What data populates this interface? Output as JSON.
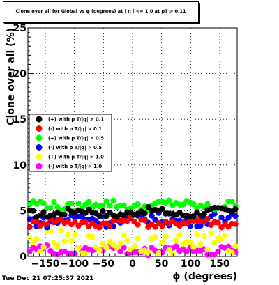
{
  "chart_data": {
    "type": "scatter",
    "title": "Clone  over all for Global vs φ (degrees) at | η | <= 1.0 at pT > 0.11",
    "xlabel": "ϕ (degrees)",
    "ylabel": "Clone  over all (%)",
    "xlim": [
      -180,
      180
    ],
    "ylim": [
      0,
      25
    ],
    "x_ticks": [
      -150,
      -100,
      -50,
      0,
      50,
      100,
      150
    ],
    "x_tick_labels": [
      "−150",
      "−100",
      "−50",
      "0",
      "50",
      "100",
      "150"
    ],
    "y_ticks": [
      0,
      5,
      10,
      15,
      20,
      25
    ],
    "y_tick_labels": [
      "0",
      "5",
      "10",
      "15",
      "20",
      "25"
    ],
    "grid": true,
    "legend_position": "left-middle",
    "series": [
      {
        "name": "(+) with p T/|q| > 0.1",
        "color": "#000000",
        "x": [],
        "values": [],
        "base": 4.8,
        "amp": 0.35
      },
      {
        "name": "(-) with p T/|q| > 0.1",
        "color": "#ff0000",
        "x": [],
        "values": [],
        "base": 3.7,
        "amp": 0.4
      },
      {
        "name": "(+) with p T/|q| > 0.5",
        "color": "#00ff00",
        "x": [],
        "values": [],
        "base": 5.6,
        "amp": 0.45
      },
      {
        "name": "(-) with p T/|q| > 0.5",
        "color": "#0000ff",
        "x": [],
        "values": [],
        "base": 4.0,
        "amp": 0.6
      },
      {
        "name": "(+) with p T/|q| > 1.0",
        "color": "#ffff00",
        "x": [],
        "values": [],
        "base": 1.5,
        "amp": 1.1
      },
      {
        "name": "(-) with p T/|q| > 1.0",
        "color": "#ff00ff",
        "x": [],
        "values": [],
        "base": 0.7,
        "amp": 0.45
      }
    ]
  },
  "date_stamp": "Tue Dec 21 07:25:37 2021"
}
